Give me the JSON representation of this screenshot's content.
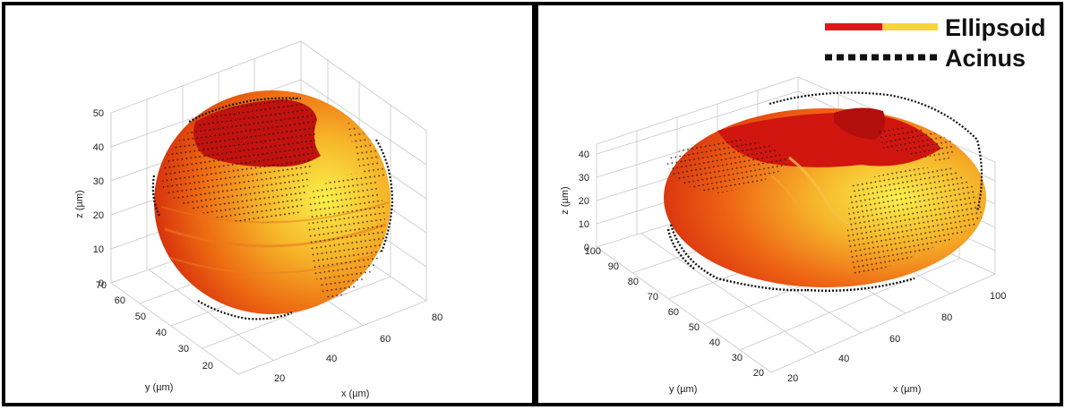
{
  "chart_data": [
    {
      "type": "3d-surface",
      "panel": "left",
      "xlabel": "x (µm)",
      "ylabel": "y (µm)",
      "zlabel": "z (µm)",
      "x_ticks": [
        "20",
        "40",
        "60",
        "80"
      ],
      "y_ticks": [
        "20",
        "30",
        "40",
        "50",
        "60",
        "70"
      ],
      "z_ticks": [
        "0",
        "10",
        "20",
        "30",
        "40",
        "50"
      ],
      "xlim": [
        15,
        80
      ],
      "ylim": [
        15,
        70
      ],
      "zlim": [
        0,
        55
      ],
      "grid": true,
      "colors": {
        "ellipsoid_dark": "#c8100e",
        "ellipsoid_mid": "#f07a10",
        "ellipsoid_light": "#f7e43a",
        "acinus": "#111111"
      }
    },
    {
      "type": "3d-surface",
      "panel": "right",
      "xlabel": "x (µm)",
      "ylabel": "y (µm)",
      "zlabel": "z (µm)",
      "x_ticks": [
        "20",
        "40",
        "60",
        "80",
        "100"
      ],
      "y_ticks": [
        "20",
        "30",
        "40",
        "50",
        "60",
        "70",
        "80",
        "90",
        "100"
      ],
      "z_ticks": [
        "0",
        "10",
        "20",
        "30",
        "40"
      ],
      "xlim": [
        15,
        105
      ],
      "ylim": [
        15,
        105
      ],
      "zlim": [
        0,
        45
      ],
      "grid": true,
      "legend": {
        "placement": "top-right",
        "entries": [
          {
            "label": "Ellipsoid",
            "style": "solid",
            "colors": [
              "#e0171a",
              "#f7d43a"
            ]
          },
          {
            "label": "Acinus",
            "style": "dotted",
            "colors": [
              "#111111"
            ]
          }
        ]
      }
    }
  ]
}
